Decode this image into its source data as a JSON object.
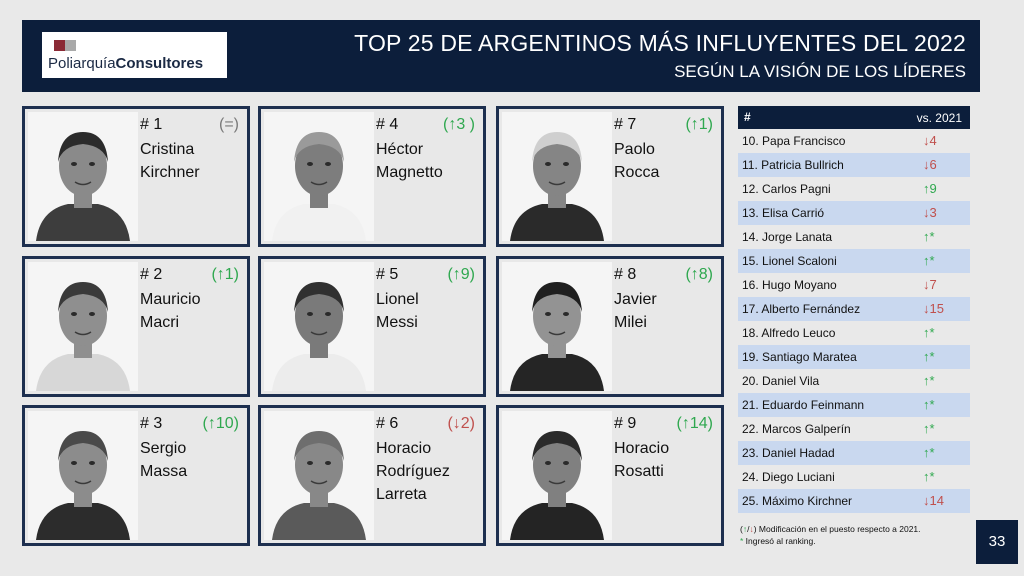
{
  "header": {
    "logo_brand": "Poliarquía",
    "logo_suffix": "Consultores",
    "title": "TOP 25 DE ARGENTINOS MÁS INFLUYENTES DEL 2022",
    "subtitle": "SEGÚN LA VISIÓN DE LOS LÍDERES"
  },
  "cards": [
    {
      "rank": "# 1",
      "change": "(=)",
      "dir": "eq",
      "name_lines": [
        "Cristina",
        "Kirchner"
      ]
    },
    {
      "rank": "# 4",
      "change": "(↑3 )",
      "dir": "up",
      "name_lines": [
        "Héctor",
        "Magnetto"
      ]
    },
    {
      "rank": "# 7",
      "change": "(↑1)",
      "dir": "up",
      "name_lines": [
        "Paolo",
        "Rocca"
      ]
    },
    {
      "rank": "# 2",
      "change": "(↑1)",
      "dir": "up",
      "name_lines": [
        "Mauricio",
        "Macri"
      ]
    },
    {
      "rank": "# 5",
      "change": "(↑9)",
      "dir": "up",
      "name_lines": [
        "Lionel",
        "Messi"
      ]
    },
    {
      "rank": "# 8",
      "change": "(↑8)",
      "dir": "up",
      "name_lines": [
        "Javier",
        "Milei"
      ]
    },
    {
      "rank": "# 3",
      "change": "(↑10)",
      "dir": "up",
      "name_lines": [
        "Sergio",
        "Massa"
      ]
    },
    {
      "rank": "# 6",
      "change": "(↓2)",
      "dir": "down",
      "name_lines": [
        "Horacio",
        "Rodríguez",
        "Larreta"
      ]
    },
    {
      "rank": "# 9",
      "change": "(↑14)",
      "dir": "up",
      "name_lines": [
        "Horacio",
        "Rosatti"
      ]
    }
  ],
  "table": {
    "col_rank": "#",
    "col_change": "vs. 2021",
    "rows": [
      {
        "label": "10. Papa Francisco",
        "change": "↓4",
        "dir": "down"
      },
      {
        "label": "11. Patricia Bullrich",
        "change": "↓6",
        "dir": "down"
      },
      {
        "label": "12. Carlos Pagni",
        "change": "↑9",
        "dir": "up"
      },
      {
        "label": "13. Elisa Carrió",
        "change": "↓3",
        "dir": "down"
      },
      {
        "label": "14. Jorge Lanata",
        "change": "↑*",
        "dir": "up"
      },
      {
        "label": "15. Lionel Scaloni",
        "change": "↑*",
        "dir": "up"
      },
      {
        "label": "16. Hugo Moyano",
        "change": "↓7",
        "dir": "down"
      },
      {
        "label": "17. Alberto Fernández",
        "change": "↓15",
        "dir": "down"
      },
      {
        "label": "18. Alfredo Leuco",
        "change": "↑*",
        "dir": "up"
      },
      {
        "label": "19. Santiago Maratea",
        "change": "↑*",
        "dir": "up"
      },
      {
        "label": "20. Daniel Vila",
        "change": "↑*",
        "dir": "up"
      },
      {
        "label": "21. Eduardo Feinmann",
        "change": "↑*",
        "dir": "up"
      },
      {
        "label": "22. Marcos Galperín",
        "change": "↑*",
        "dir": "up"
      },
      {
        "label": "23. Daniel Hadad",
        "change": "↑*",
        "dir": "up"
      },
      {
        "label": "24. Diego Luciani",
        "change": "↑*",
        "dir": "up"
      },
      {
        "label": "25. Máximo Kirchner",
        "change": "↓14",
        "dir": "down"
      }
    ]
  },
  "footnote": {
    "open_paren": "(",
    "up_arrow": "↑",
    "slash": "/",
    "down_arrow": "↓",
    "line1_text": ") Modificación en el puesto respecto a 2021.",
    "star": "*",
    "line2_text": " Ingresó al ranking."
  },
  "page_number": "33",
  "colors": {
    "navy": "#0c1e3b",
    "card_border": "#1d2f4f",
    "up": "#2fa84f",
    "down": "#c0504d",
    "row_alt": "#c9d8ef"
  }
}
